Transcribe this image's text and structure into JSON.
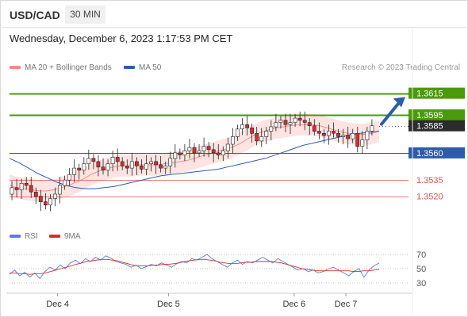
{
  "header": {
    "symbol": "USD/CAD",
    "timeframe": "30 MIN",
    "datetime": "Wednesday, December 6, 2023 1:17:53 PM CET"
  },
  "legend": {
    "bb_label": "MA 20 + Bollinger Bands",
    "ma50_label": "MA 50",
    "credit": "Research © 2023 Trading Central",
    "rsi_label": "RSI",
    "ma9_label": "9MA"
  },
  "colors": {
    "up": "#ffffff",
    "down": "#d32f2f",
    "bb": "#f28b82",
    "ma50": "#2e5bab",
    "resistance": "#4a9a0b",
    "support": "#2e5bab",
    "minor": "#e05050",
    "rsi": "#5b7fd6",
    "rsi_ma": "#d32f2f",
    "arrow": "#2e5bab"
  },
  "chart_data": [
    {
      "type": "candlestick",
      "title": "USD/CAD 30 MIN",
      "ylim": [
        1.3495,
        1.363
      ],
      "x_ticks": [
        {
          "label": "Dec 4",
          "t": 0.13
        },
        {
          "label": "Dec 5",
          "t": 0.43
        },
        {
          "label": "Dec 6",
          "t": 0.77
        },
        {
          "label": "Dec 7",
          "t": 0.91
        }
      ],
      "levels": [
        {
          "value": 1.3615,
          "label": "1.3615",
          "kind": "resistance"
        },
        {
          "value": 1.3595,
          "label": "1.3595",
          "kind": "resistance"
        },
        {
          "value": 1.3585,
          "label": "1.3585",
          "kind": "last"
        },
        {
          "value": 1.356,
          "label": "1.3560",
          "kind": "support"
        },
        {
          "value": 1.3535,
          "label": "1.3535",
          "kind": "minor"
        },
        {
          "value": 1.352,
          "label": "1.3520",
          "kind": "minor"
        }
      ],
      "price_path": [
        1.3522,
        1.3528,
        1.3526,
        1.3532,
        1.353,
        1.3524,
        1.352,
        1.3515,
        1.3512,
        1.3518,
        1.3522,
        1.353,
        1.3535,
        1.354,
        1.3546,
        1.3544,
        1.355,
        1.3555,
        1.3552,
        1.3547,
        1.3544,
        1.355,
        1.3556,
        1.3552,
        1.3548,
        1.3546,
        1.3552,
        1.3548,
        1.3545,
        1.355,
        1.3552,
        1.3549,
        1.3546,
        1.3548,
        1.3555,
        1.356,
        1.3558,
        1.3562,
        1.3565,
        1.356,
        1.3562,
        1.3566,
        1.3563,
        1.356,
        1.3558,
        1.3562,
        1.3568,
        1.3575,
        1.3582,
        1.3586,
        1.3583,
        1.3578,
        1.3571,
        1.3575,
        1.358,
        1.3584,
        1.3588,
        1.359,
        1.3586,
        1.3588,
        1.3592,
        1.359,
        1.3588,
        1.3585,
        1.358,
        1.3578,
        1.3576,
        1.358,
        1.3578,
        1.3575,
        1.3576,
        1.3573,
        1.3578,
        1.3566,
        1.3572,
        1.358,
        1.3585
      ],
      "bb_mid": [
        1.353,
        1.3528,
        1.3527,
        1.3526,
        1.3525,
        1.3525,
        1.3526,
        1.3528,
        1.353,
        1.3533,
        1.3536,
        1.354,
        1.3543,
        1.3545,
        1.3547,
        1.3548,
        1.3548,
        1.3549,
        1.3549,
        1.3549,
        1.3549,
        1.355,
        1.3551,
        1.3552,
        1.3553,
        1.3555,
        1.3557,
        1.3559,
        1.3561,
        1.3563,
        1.3565,
        1.3568,
        1.3572,
        1.3576,
        1.3579,
        1.3581,
        1.3583,
        1.3584,
        1.3585,
        1.3586,
        1.3586,
        1.3586,
        1.3585,
        1.3583,
        1.3581,
        1.3579,
        1.3578,
        1.3577,
        1.3577,
        1.3578,
        1.358
      ],
      "bb_width": 0.001,
      "ma50": [
        1.3555,
        1.3551,
        1.3546,
        1.3541,
        1.3537,
        1.3533,
        1.353,
        1.3528,
        1.3527,
        1.3527,
        1.3528,
        1.3529,
        1.3531,
        1.3533,
        1.3535,
        1.3537,
        1.3539,
        1.354,
        1.3541,
        1.3542,
        1.3543,
        1.3544,
        1.3545,
        1.3547,
        1.3549,
        1.3551,
        1.3553,
        1.3555,
        1.3558,
        1.3561,
        1.3564,
        1.3567,
        1.3569,
        1.3571,
        1.3573,
        1.3575,
        1.3577,
        1.3578,
        1.3579,
        1.358
      ],
      "projection": {
        "from": 1.3585,
        "to": 1.3613
      }
    },
    {
      "type": "line",
      "title": "RSI",
      "ylim": [
        20,
        80
      ],
      "y_ticks": [
        70,
        50,
        30
      ],
      "series": [
        {
          "name": "RSI",
          "values": [
            42,
            48,
            40,
            45,
            38,
            44,
            36,
            46,
            52,
            48,
            55,
            50,
            58,
            62,
            57,
            64,
            60,
            66,
            62,
            68,
            65,
            60,
            58,
            56,
            52,
            55,
            50,
            53,
            56,
            54,
            58,
            55,
            52,
            57,
            60,
            58,
            64,
            62,
            66,
            70,
            64,
            60,
            56,
            52,
            58,
            62,
            56,
            60,
            58,
            62,
            66,
            62,
            58,
            64,
            60,
            56,
            52,
            48,
            50,
            46,
            48,
            44,
            46,
            50,
            52,
            48,
            44,
            40,
            46,
            50,
            38,
            48,
            54,
            58
          ]
        },
        {
          "name": "9MA",
          "values": [
            44,
            44,
            43,
            43,
            42,
            43,
            43,
            44,
            46,
            48,
            50,
            52,
            54,
            56,
            58,
            60,
            61,
            62,
            63,
            63,
            62,
            61,
            59,
            57,
            55,
            54,
            54,
            54,
            55,
            55,
            56,
            56,
            57,
            58,
            60,
            61,
            62,
            63,
            63,
            62,
            61,
            59,
            58,
            57,
            57,
            58,
            59,
            59,
            60,
            60,
            60,
            60,
            59,
            58,
            56,
            54,
            52,
            50,
            49,
            48,
            47,
            47,
            47,
            47,
            47,
            47,
            47,
            46,
            46,
            47,
            47,
            48,
            49
          ]
        }
      ]
    }
  ]
}
